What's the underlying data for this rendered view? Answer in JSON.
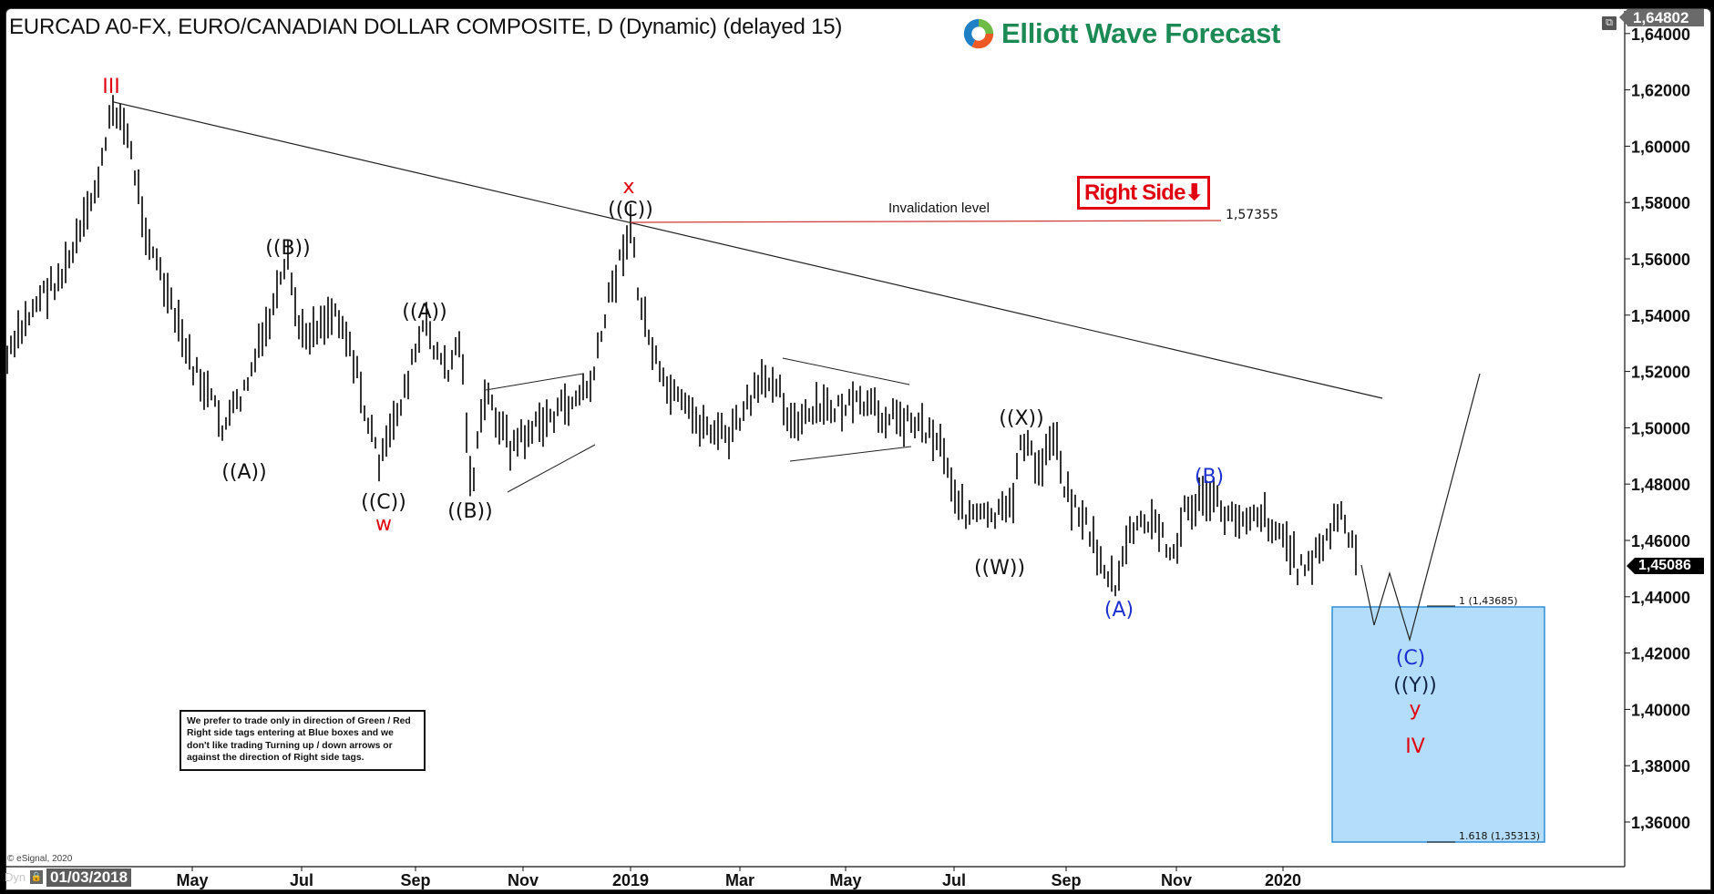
{
  "header": {
    "title": "EURCAD A0-FX, EURO/CANADIAN DOLLAR COMPOSITE, D (Dynamic) (delayed 15)",
    "logo_text": "Elliott Wave Forecast"
  },
  "price_tags": {
    "top": "1,64802",
    "current": "1,45086"
  },
  "annotations": {
    "invalidation_label": "Invalidation level",
    "invalidation_value": "1,57355",
    "right_side_tag": "Right Side",
    "right_side_arrow": "⬇",
    "fib_1": "1 (1,43685)",
    "fib_1618": "1.618 (1,35313)",
    "disclaimer": "We prefer to trade only in direction of Green / Red Right side tags entering at Blue boxes and we don't like trading Turning up / down arrows or against the direction of Right side tags."
  },
  "footer": {
    "copyright": "© eSignal, 2020",
    "dyn": "Dyn",
    "start_date": "01/03/2018"
  },
  "icons": {
    "restore": "restore-window-icon",
    "lock": "lock-icon",
    "logo": "elliott-wave-logo-icon"
  },
  "colors": {
    "bars": "#000000",
    "wave_red": "#e0000f",
    "wave_blue": "#1a2fd0",
    "wave_black": "#111111",
    "blue_box_fill": "#b3ddfa",
    "blue_box_border": "#2f8fd8",
    "invalidation_line": "#d23a3a",
    "logo_green": "#1c8a55"
  },
  "chart_data": {
    "type": "ohlc-bar",
    "title": "EURCAD A0-FX, EURO/CANADIAN DOLLAR COMPOSITE, D (Dynamic) (delayed 15)",
    "xlabel": "",
    "ylabel": "",
    "ylim": [
      1.345,
      1.648
    ],
    "y_ticks": [
      "1,36000",
      "1,38000",
      "1,40000",
      "1,42000",
      "1,44000",
      "1,46000",
      "1,48000",
      "1,50000",
      "1,52000",
      "1,54000",
      "1,56000",
      "1,58000",
      "1,60000",
      "1,62000",
      "1,64000"
    ],
    "x_ticks": [
      "May",
      "Jul",
      "Sep",
      "Nov",
      "2019",
      "Mar",
      "May",
      "Jul",
      "Sep",
      "Nov",
      "2020"
    ],
    "grid": false,
    "last_price": 1.45086,
    "high_marker": 1.64802,
    "key_points": [
      {
        "label": "III",
        "date": "2018-03",
        "price": 1.6168,
        "color": "red"
      },
      {
        "label": "((A))",
        "date": "2018-06",
        "price": 1.4925,
        "color": "black"
      },
      {
        "label": "((B))",
        "date": "2018-06-25",
        "price": 1.5594,
        "color": "black"
      },
      {
        "label": "((C)) w",
        "date": "2018-08-15",
        "price": 1.4802,
        "color": "black/red"
      },
      {
        "label": "((A))",
        "date": "2018-09-05",
        "price": 1.5365,
        "color": "black"
      },
      {
        "label": "((B))",
        "date": "2018-10-01",
        "price": 1.4755,
        "color": "black"
      },
      {
        "label": "((C)) x",
        "date": "2018-12-31",
        "price": 1.57355,
        "color": "black/red"
      },
      {
        "label": "((W))",
        "date": "2019-07-10",
        "price": 1.457,
        "color": "black"
      },
      {
        "label": "((X))",
        "date": "2019-08-05",
        "price": 1.4998,
        "color": "black"
      },
      {
        "label": "(A)",
        "date": "2019-10-01",
        "price": 1.4412,
        "color": "blue"
      },
      {
        "label": "(B)",
        "date": "2019-11-28",
        "price": 1.478,
        "color": "blue"
      },
      {
        "label": "(C) ((Y)) y IV",
        "date": "2020-03 (projected)",
        "price": 1.425,
        "color": "blue/black/red/red"
      }
    ],
    "trendline": {
      "from": {
        "date": "2018-03",
        "price": 1.6168
      },
      "to": {
        "date": "2020-03",
        "price": 1.511
      }
    },
    "invalidation_level": 1.57355,
    "blue_box": {
      "top": 1.43685,
      "bottom": 1.35313,
      "labels": [
        "1 (1,43685)",
        "1.618 (1,35313)"
      ]
    },
    "projection_path": [
      1.454,
      1.43,
      1.448,
      1.424,
      1.519
    ]
  },
  "wave_labels": {
    "III": "III",
    "A1": "((A))",
    "B1": "((B))",
    "C1": "((C))",
    "w": "w",
    "A2": "((A))",
    "B2": "((B))",
    "C2": "((C))",
    "x": "x",
    "W": "((W))",
    "X": "((X))",
    "A3": "(A)",
    "B3": "(B)",
    "C3": "(C)",
    "Y": "((Y))",
    "y": "y",
    "IV": "IV"
  }
}
